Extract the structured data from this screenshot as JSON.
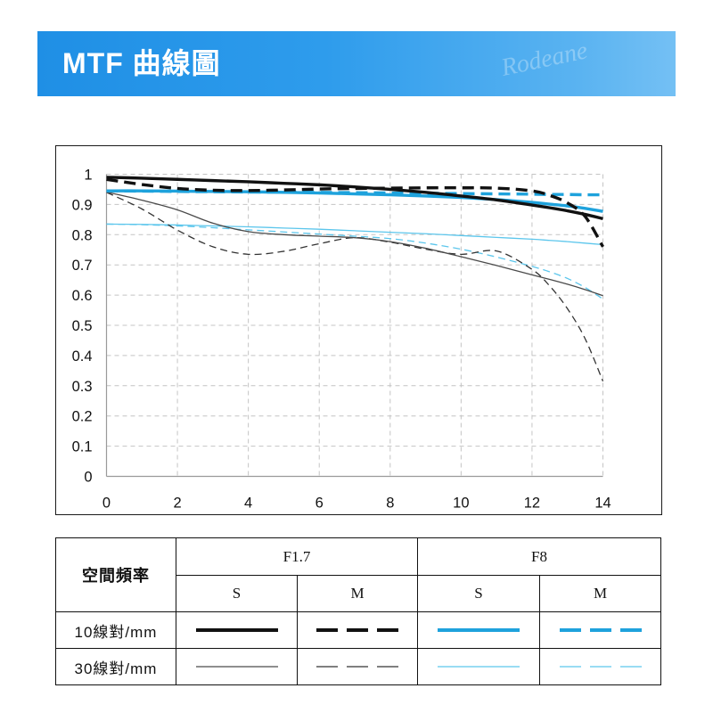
{
  "banner": {
    "title": "MTF 曲線圖",
    "watermark": "Rodeane",
    "gradient": [
      "#1f8fe5",
      "#74c0f4"
    ]
  },
  "chart_data": {
    "type": "line",
    "xlim": [
      0,
      14
    ],
    "ylim": [
      0,
      1
    ],
    "xticks": [
      0,
      2,
      4,
      6,
      8,
      10,
      12,
      14
    ],
    "yticks": [
      0,
      0.1,
      0.2,
      0.3,
      0.4,
      0.5,
      0.6,
      0.7,
      0.8,
      0.9,
      1
    ],
    "grid": true,
    "x": [
      0,
      1,
      2,
      3,
      4,
      5,
      6,
      7,
      8,
      9,
      10,
      11,
      12,
      12.5,
      13,
      13.5,
      14
    ],
    "series": [
      {
        "aperture": "F1.7",
        "direction": "S",
        "frequency": "10線對/mm",
        "color": "#111111",
        "line": "solid",
        "weight": "thick",
        "values": [
          0.99,
          0.987,
          0.983,
          0.979,
          0.975,
          0.97,
          0.965,
          0.958,
          0.95,
          0.94,
          0.928,
          0.915,
          0.898,
          0.889,
          0.879,
          0.867,
          0.853
        ]
      },
      {
        "aperture": "F1.7",
        "direction": "M",
        "frequency": "10線對/mm",
        "color": "#111111",
        "line": "dashed",
        "weight": "thick",
        "values": [
          0.983,
          0.966,
          0.953,
          0.947,
          0.946,
          0.948,
          0.951,
          0.953,
          0.954,
          0.955,
          0.955,
          0.954,
          0.945,
          0.93,
          0.905,
          0.86,
          0.76
        ]
      },
      {
        "aperture": "F8",
        "direction": "S",
        "frequency": "10線對/mm",
        "color": "#1ea2dc",
        "line": "solid",
        "weight": "thick",
        "values": [
          0.945,
          0.945,
          0.944,
          0.943,
          0.942,
          0.94,
          0.938,
          0.935,
          0.932,
          0.928,
          0.923,
          0.916,
          0.907,
          0.901,
          0.895,
          0.887,
          0.877
        ]
      },
      {
        "aperture": "F8",
        "direction": "M",
        "frequency": "10線對/mm",
        "color": "#1ea2dc",
        "line": "dashed",
        "weight": "thick",
        "values": [
          0.945,
          0.944,
          0.943,
          0.942,
          0.941,
          0.941,
          0.94,
          0.939,
          0.938,
          0.937,
          0.936,
          0.935,
          0.934,
          0.933,
          0.933,
          0.932,
          0.932
        ]
      },
      {
        "aperture": "F1.7",
        "direction": "S",
        "frequency": "30線對/mm",
        "color": "#4a4a4a",
        "line": "solid",
        "weight": "thin",
        "values": [
          0.941,
          0.914,
          0.882,
          0.838,
          0.81,
          0.8,
          0.795,
          0.79,
          0.777,
          0.755,
          0.727,
          0.698,
          0.667,
          0.652,
          0.636,
          0.618,
          0.598
        ]
      },
      {
        "aperture": "F1.7",
        "direction": "M",
        "frequency": "30線對/mm",
        "color": "#333333",
        "line": "dashed",
        "weight": "thin",
        "values": [
          0.94,
          0.885,
          0.815,
          0.76,
          0.735,
          0.745,
          0.77,
          0.79,
          0.775,
          0.752,
          0.735,
          0.746,
          0.685,
          0.63,
          0.555,
          0.455,
          0.315
        ]
      },
      {
        "aperture": "F8",
        "direction": "S",
        "frequency": "30線對/mm",
        "color": "#5cc6ec",
        "line": "solid",
        "weight": "thin",
        "values": [
          0.835,
          0.834,
          0.832,
          0.829,
          0.826,
          0.822,
          0.818,
          0.813,
          0.808,
          0.803,
          0.797,
          0.791,
          0.785,
          0.781,
          0.777,
          0.772,
          0.767
        ]
      },
      {
        "aperture": "F8",
        "direction": "M",
        "frequency": "30線對/mm",
        "color": "#5cc6ec",
        "line": "dashed",
        "weight": "thin",
        "values": [
          0.835,
          0.833,
          0.829,
          0.823,
          0.816,
          0.809,
          0.802,
          0.795,
          0.787,
          0.772,
          0.752,
          0.726,
          0.695,
          0.677,
          0.655,
          0.625,
          0.587
        ]
      }
    ],
    "legend": {
      "placement": "bottom",
      "corner_label": "空間頻率",
      "apertures": [
        "F1.7",
        "F8"
      ],
      "directions": [
        "S",
        "M"
      ],
      "frequencies": [
        "10線對/mm",
        "30線對/mm"
      ]
    }
  }
}
